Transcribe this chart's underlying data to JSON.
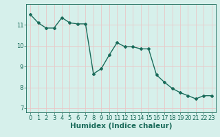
{
  "x": [
    0,
    1,
    2,
    3,
    4,
    5,
    6,
    7,
    8,
    9,
    10,
    11,
    12,
    13,
    14,
    15,
    16,
    17,
    18,
    19,
    20,
    21,
    22,
    23
  ],
  "y": [
    11.5,
    11.1,
    10.85,
    10.85,
    11.35,
    11.1,
    11.05,
    11.05,
    8.65,
    8.9,
    9.55,
    10.15,
    9.95,
    9.95,
    9.85,
    9.85,
    8.6,
    8.25,
    7.95,
    7.75,
    7.6,
    7.45,
    7.6,
    7.6
  ],
  "line_color": "#1a6b5a",
  "marker": "D",
  "markersize": 2.0,
  "linewidth": 1.0,
  "xlabel": "Humidex (Indice chaleur)",
  "xlim": [
    -0.5,
    23.5
  ],
  "ylim": [
    6.8,
    12.0
  ],
  "yticks": [
    7,
    8,
    9,
    10,
    11
  ],
  "xticks": [
    0,
    1,
    2,
    3,
    4,
    5,
    6,
    7,
    8,
    9,
    10,
    11,
    12,
    13,
    14,
    15,
    16,
    17,
    18,
    19,
    20,
    21,
    22,
    23
  ],
  "bg_color": "#d6f0eb",
  "grid_color": "#e8c8c8",
  "tick_color": "#1a6b5a",
  "tick_labelsize": 6,
  "xlabel_fontsize": 7.5
}
